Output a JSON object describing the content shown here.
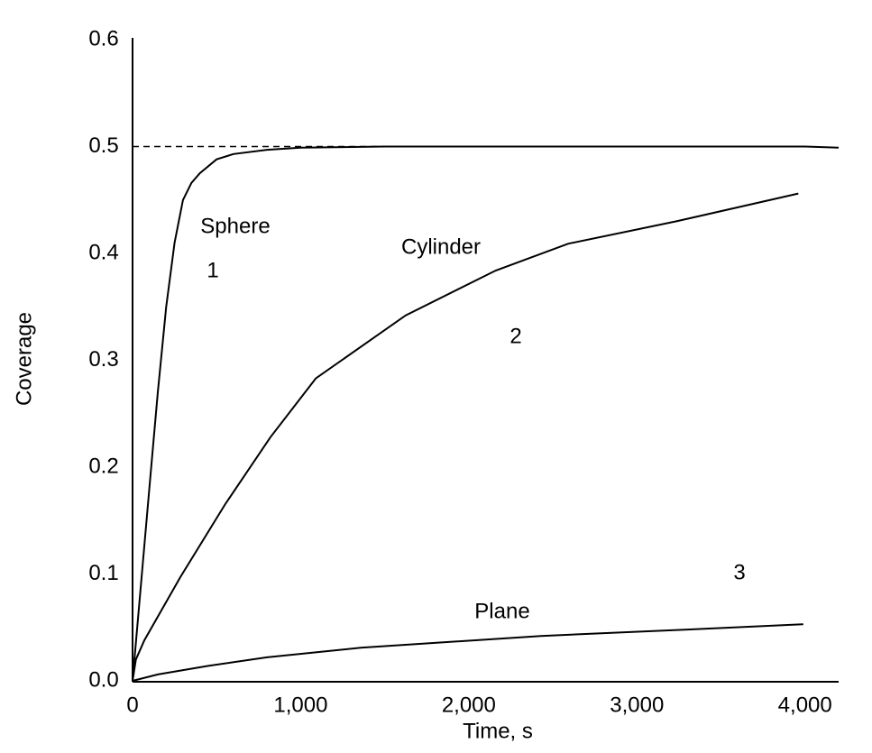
{
  "chart_data": {
    "type": "line",
    "xlabel": "Time, s",
    "ylabel": "Coverage",
    "xlim": [
      0,
      4200
    ],
    "ylim": [
      0,
      0.6
    ],
    "xticks": [
      0,
      {
        "value": 1000,
        "label": "1,000"
      },
      {
        "value": 2000,
        "label": "2,000"
      },
      {
        "value": 3000,
        "label": "3,000"
      },
      {
        "value": 4000,
        "label": "4,000"
      }
    ],
    "yticks": [
      {
        "value": 0,
        "label": "0.0"
      },
      0.1,
      0.2,
      0.3,
      0.4,
      0.5,
      0.6
    ],
    "grid": false,
    "reference_line": {
      "y": 0.5,
      "x": [
        0,
        4000
      ],
      "style": "dashed",
      "color": "#000000"
    },
    "series": [
      {
        "name": "Sphere",
        "label": "1",
        "color": "#000000",
        "x": [
          0,
          50,
          100,
          150,
          200,
          250,
          300,
          350,
          400,
          500,
          600,
          800,
          1000,
          1500,
          2000,
          3000,
          4000,
          4200
        ],
        "values": [
          0,
          0.09,
          0.18,
          0.27,
          0.35,
          0.41,
          0.45,
          0.466,
          0.475,
          0.488,
          0.493,
          0.497,
          0.499,
          0.5,
          0.5,
          0.5,
          0.5,
          0.499
        ]
      },
      {
        "name": "Cylinder",
        "label": "2",
        "color": "#000000",
        "x": [
          0,
          20,
          70,
          284,
          550,
          820,
          1090,
          1625,
          2160,
          2590,
          3235,
          3960
        ],
        "values": [
          0,
          0.02,
          0.038,
          0.097,
          0.165,
          0.228,
          0.283,
          0.342,
          0.384,
          0.409,
          0.43,
          0.456
        ]
      },
      {
        "name": "Plane",
        "label": "3",
        "color": "#000000",
        "x": [
          0,
          150,
          450,
          800,
          1357,
          2430,
          3300,
          3990
        ],
        "values": [
          0,
          0.006,
          0.014,
          0.022,
          0.031,
          0.042,
          0.048,
          0.053
        ]
      }
    ]
  }
}
